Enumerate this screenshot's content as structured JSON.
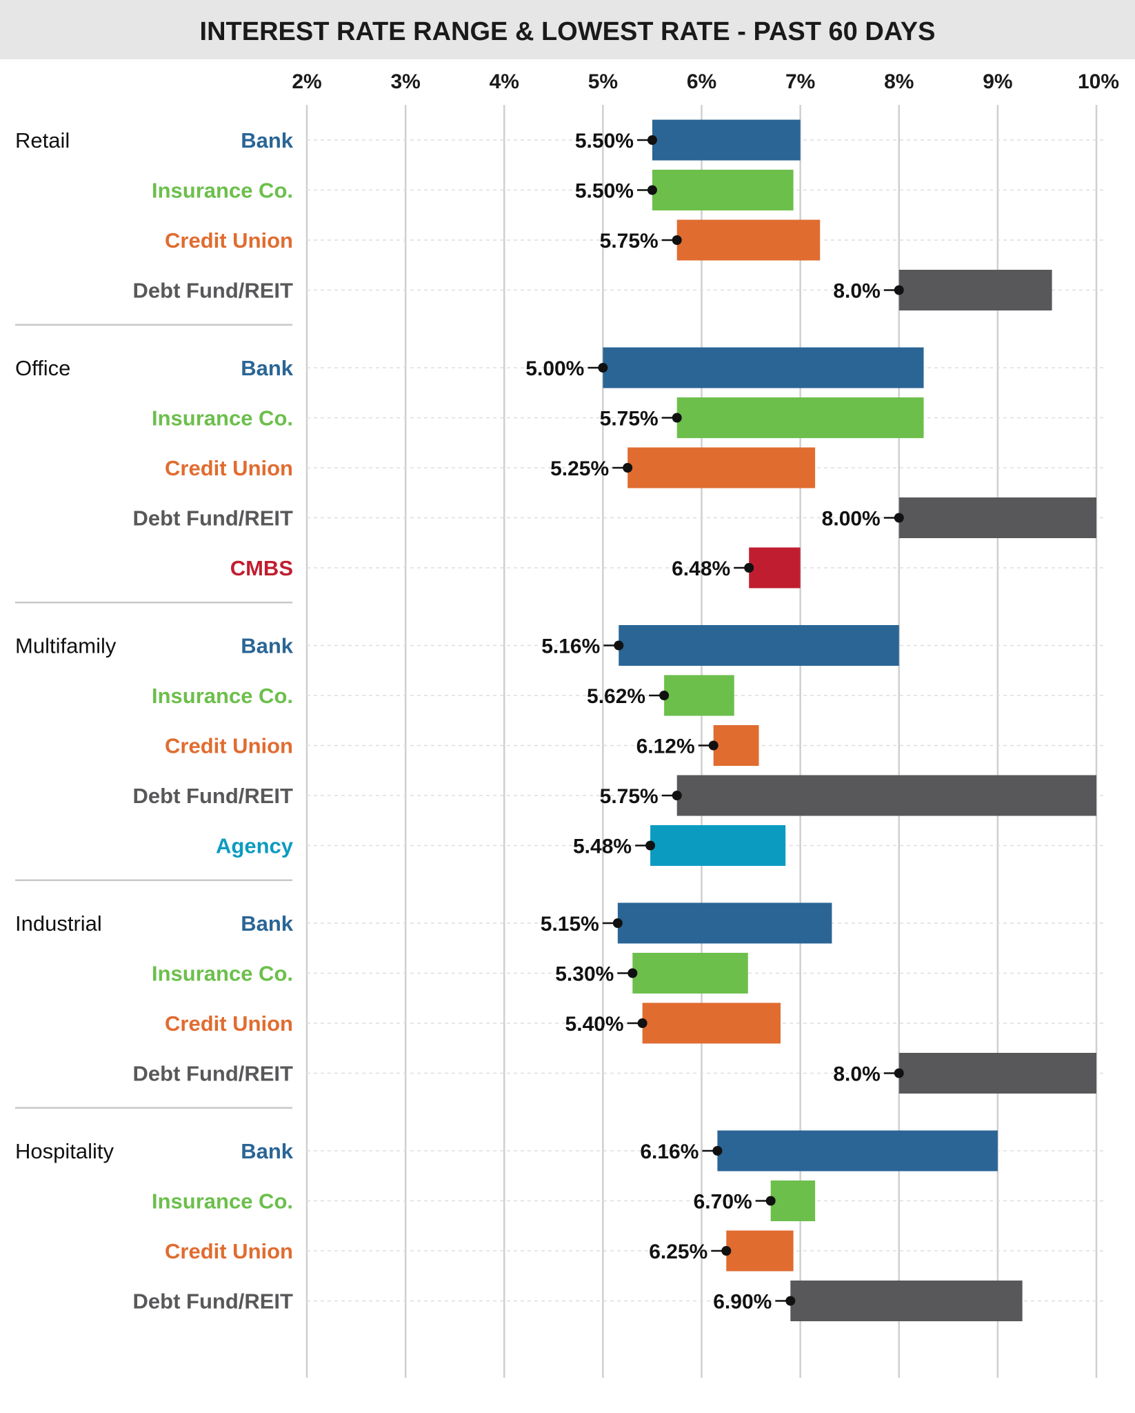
{
  "chart_data": {
    "type": "bar",
    "title": "INTEREST RATE RANGE & LOWEST RATE - PAST 60 DAYS",
    "x_ticks": [
      "2%",
      "3%",
      "4%",
      "5%",
      "6%",
      "7%",
      "8%",
      "9%",
      "10%"
    ],
    "xlim": [
      2,
      10
    ],
    "grid": true,
    "colors": {
      "Bank": "#2a6595",
      "Insurance Co.": "#6cbf4b",
      "Credit Union": "#e06c30",
      "Debt Fund/REIT": "#58585a",
      "CMBS": "#c01e30",
      "Agency": "#0c9bc0"
    },
    "groups": [
      {
        "name": "Retail",
        "rows": [
          {
            "lender": "Bank",
            "low": 5.5,
            "high": 7.0,
            "label": "5.50%"
          },
          {
            "lender": "Insurance Co.",
            "low": 5.5,
            "high": 6.93,
            "label": "5.50%"
          },
          {
            "lender": "Credit Union",
            "low": 5.75,
            "high": 7.2,
            "label": "5.75%"
          },
          {
            "lender": "Debt Fund/REIT",
            "low": 8.0,
            "high": 9.55,
            "label": "8.0%"
          }
        ]
      },
      {
        "name": "Office",
        "rows": [
          {
            "lender": "Bank",
            "low": 5.0,
            "high": 8.25,
            "label": "5.00%"
          },
          {
            "lender": "Insurance Co.",
            "low": 5.75,
            "high": 8.25,
            "label": "5.75%"
          },
          {
            "lender": "Credit Union",
            "low": 5.25,
            "high": 7.15,
            "label": "5.25%"
          },
          {
            "lender": "Debt Fund/REIT",
            "low": 8.0,
            "high": 10.0,
            "label": "8.00%"
          },
          {
            "lender": "CMBS",
            "low": 6.48,
            "high": 7.0,
            "label": "6.48%"
          }
        ]
      },
      {
        "name": "Multifamily",
        "rows": [
          {
            "lender": "Bank",
            "low": 5.16,
            "high": 8.0,
            "label": "5.16%"
          },
          {
            "lender": "Insurance Co.",
            "low": 5.62,
            "high": 6.33,
            "label": "5.62%"
          },
          {
            "lender": "Credit Union",
            "low": 6.12,
            "high": 6.58,
            "label": "6.12%"
          },
          {
            "lender": "Debt Fund/REIT",
            "low": 5.75,
            "high": 10.0,
            "label": "5.75%"
          },
          {
            "lender": "Agency",
            "low": 5.48,
            "high": 6.85,
            "label": "5.48%"
          }
        ]
      },
      {
        "name": "Industrial",
        "rows": [
          {
            "lender": "Bank",
            "low": 5.15,
            "high": 7.32,
            "label": "5.15%"
          },
          {
            "lender": "Insurance Co.",
            "low": 5.3,
            "high": 6.47,
            "label": "5.30%"
          },
          {
            "lender": "Credit Union",
            "low": 5.4,
            "high": 6.8,
            "label": "5.40%"
          },
          {
            "lender": "Debt Fund/REIT",
            "low": 8.0,
            "high": 10.0,
            "label": "8.0%"
          }
        ]
      },
      {
        "name": "Hospitality",
        "rows": [
          {
            "lender": "Bank",
            "low": 6.16,
            "high": 9.0,
            "label": "6.16%"
          },
          {
            "lender": "Insurance Co.",
            "low": 6.7,
            "high": 7.15,
            "label": "6.70%"
          },
          {
            "lender": "Credit Union",
            "low": 6.25,
            "high": 6.93,
            "label": "6.25%"
          },
          {
            "lender": "Debt Fund/REIT",
            "low": 6.9,
            "high": 9.25,
            "label": "6.90%"
          }
        ]
      }
    ]
  }
}
